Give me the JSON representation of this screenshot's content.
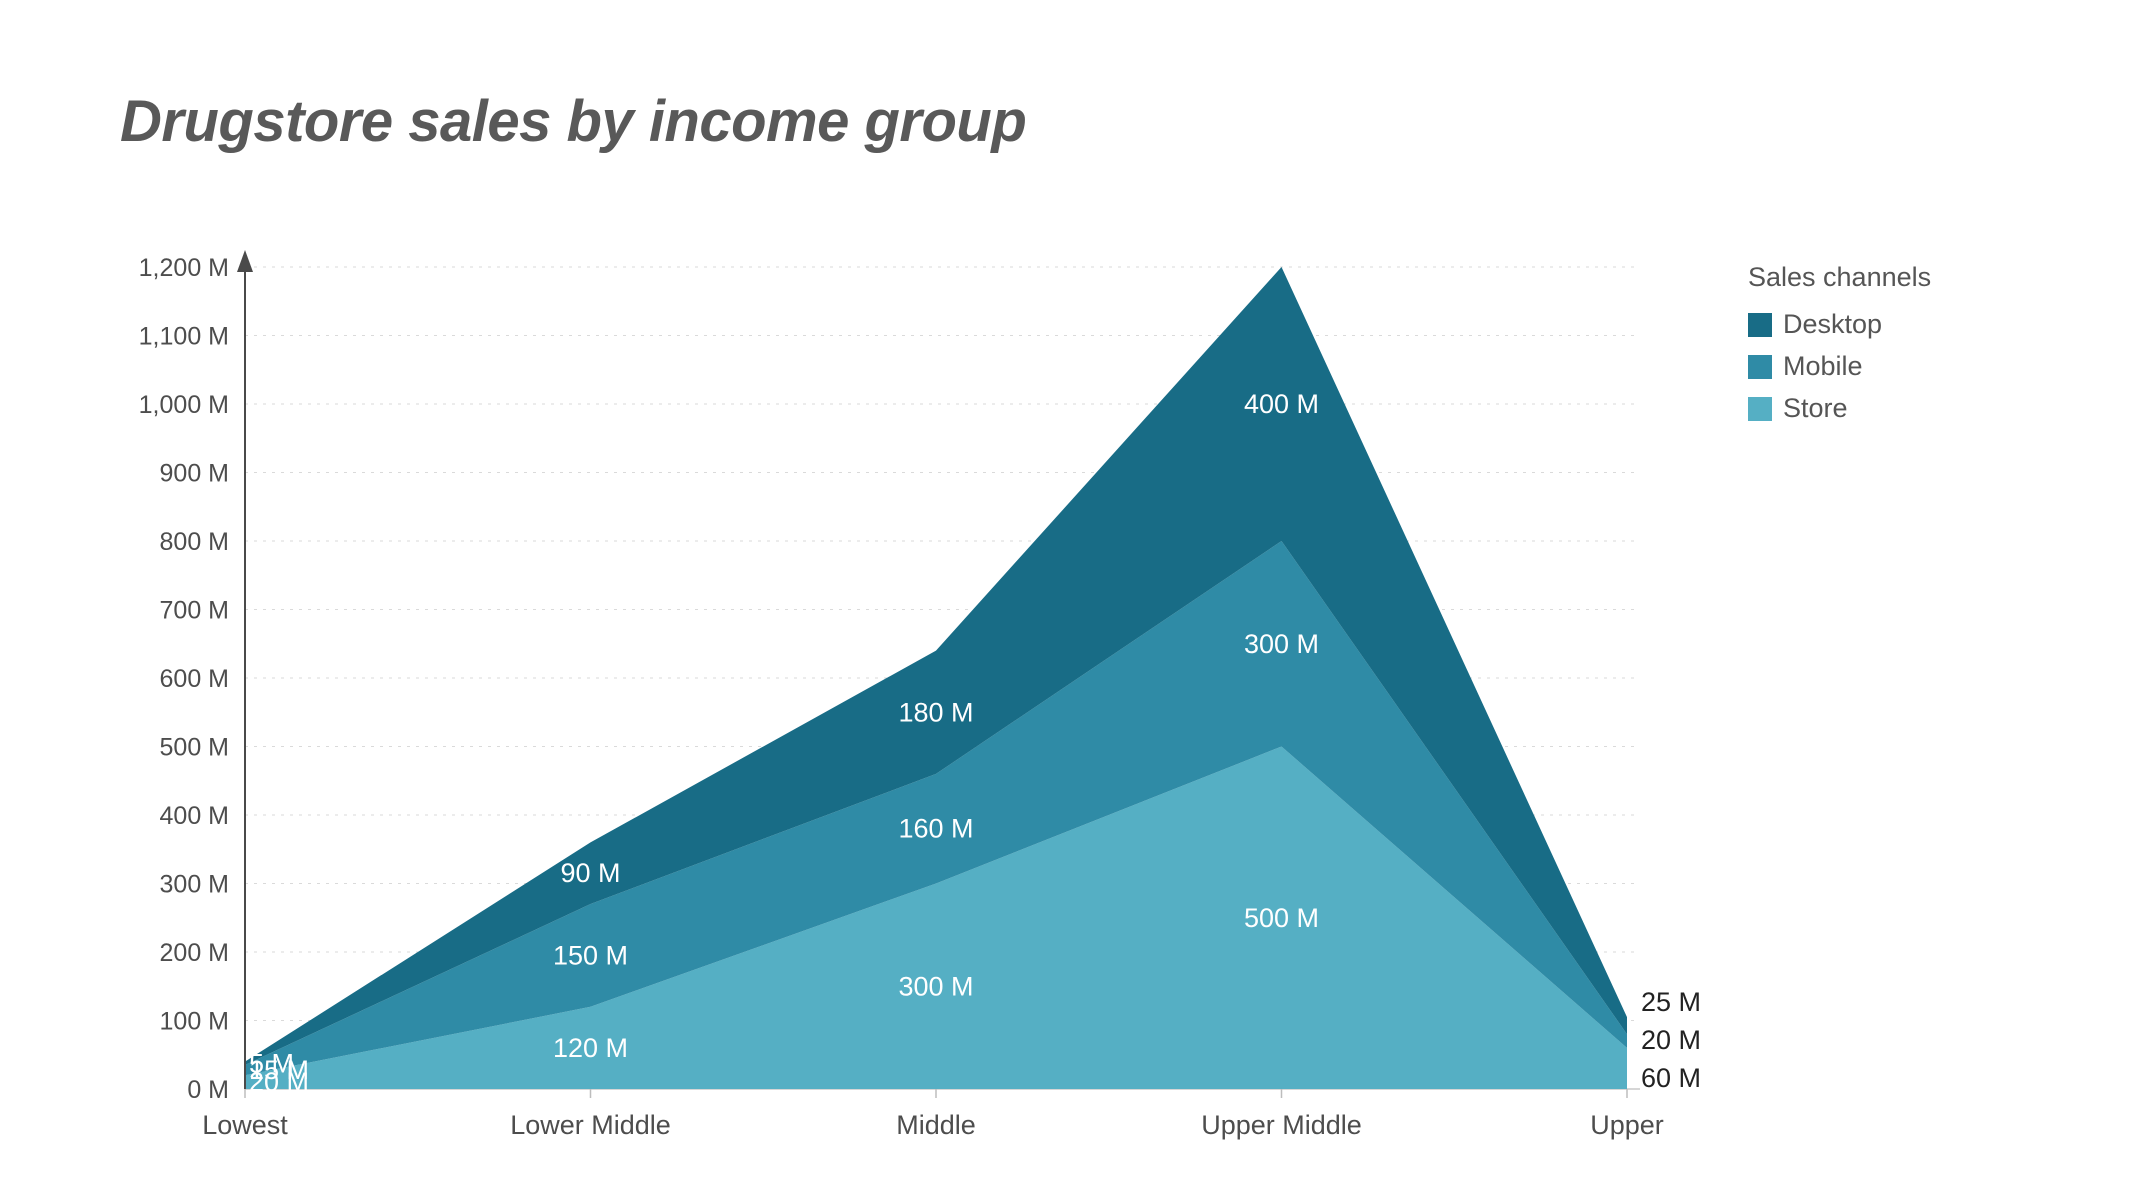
{
  "title": "Drugstore sales by income group",
  "legend": {
    "title": "Sales channels",
    "items": [
      {
        "label": "Desktop",
        "color": "#186C86"
      },
      {
        "label": "Mobile",
        "color": "#2F8BA6"
      },
      {
        "label": "Store",
        "color": "#55AFC4"
      }
    ]
  },
  "chart_data": {
    "type": "area",
    "stacked": true,
    "title": "Drugstore sales by income group",
    "categories": [
      "Lowest",
      "Lower Middle",
      "Middle",
      "Upper Middle",
      "Upper"
    ],
    "series": [
      {
        "name": "Store",
        "color": "#55AFC4",
        "values": [
          20,
          120,
          300,
          500,
          60
        ]
      },
      {
        "name": "Mobile",
        "color": "#2F8BA6",
        "values": [
          15,
          150,
          160,
          300,
          20
        ]
      },
      {
        "name": "Desktop",
        "color": "#186C86",
        "values": [
          5,
          90,
          180,
          400,
          25
        ]
      }
    ],
    "totals": [
      40,
      360,
      640,
      1200,
      105
    ],
    "unit": "M",
    "ylim": [
      0,
      1200
    ],
    "ytick_step": 100,
    "ytick_labels": [
      "0 M",
      "100 M",
      "200 M",
      "300 M",
      "400 M",
      "500 M",
      "600 M",
      "700 M",
      "800 M",
      "900 M",
      "1,000 M",
      "1,100 M",
      "1,200 M"
    ],
    "legend_title": "Sales channels",
    "legend_position": "right",
    "legend_order": [
      "Desktop",
      "Mobile",
      "Store"
    ],
    "grid": "horizontal-dashed",
    "data_labels": true
  }
}
